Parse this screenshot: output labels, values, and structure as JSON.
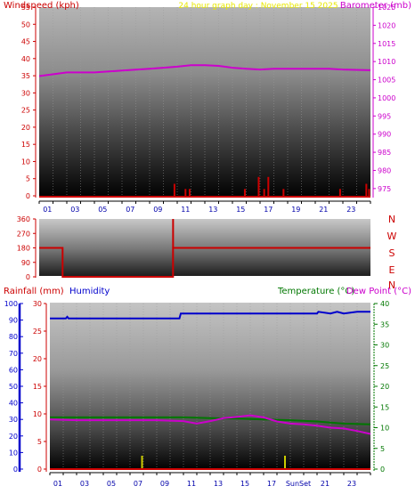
{
  "header": {
    "left": "Windspeed (kph)",
    "center": "24 hour graph day : November 15 2025",
    "right": "Barometer (mb)"
  },
  "colors": {
    "wind": "#cc0000",
    "baro": "#cc00cc",
    "center_title": "#e8e800",
    "humidity": "#0000cc",
    "rain": "#cc0000",
    "temperature": "#007700",
    "dewpoint": "#cc00cc",
    "sun": "#cccc00"
  },
  "chart_data": [
    {
      "type": "line",
      "name": "wind-barometer",
      "x_ticks": [
        "01",
        "03",
        "05",
        "07",
        "09",
        "11",
        "13",
        "15",
        "17",
        "19",
        "21",
        "23"
      ],
      "y_left": {
        "label": "Windspeed (kph)",
        "ticks": [
          0,
          5,
          10,
          15,
          20,
          25,
          30,
          35,
          40,
          45,
          50,
          55
        ],
        "lim": [
          0,
          55
        ]
      },
      "y_right": {
        "label": "Barometer (mb)",
        "ticks": [
          975,
          980,
          985,
          990,
          995,
          1000,
          1005,
          1010,
          1015,
          1020,
          1025
        ],
        "lim": [
          973,
          1025
        ]
      },
      "barometer": {
        "x": [
          0,
          2,
          4,
          6,
          8,
          9,
          10,
          11,
          12,
          13,
          14,
          15,
          16,
          17,
          18,
          19,
          20,
          21,
          22,
          23,
          24
        ],
        "y": [
          1006,
          1007,
          1007,
          1007.5,
          1008,
          1008.3,
          1008.6,
          1009,
          1009,
          1008.8,
          1008.3,
          1008,
          1007.8,
          1008,
          1008,
          1008,
          1008,
          1008,
          1007.8,
          1007.7,
          1007.6
        ]
      },
      "wind_bars": {
        "x": [
          9.8,
          10.6,
          10.9,
          14.9,
          15.9,
          16.3,
          16.6,
          17.7,
          21.8,
          23.7,
          23.9
        ],
        "y": [
          3.5,
          2,
          2,
          2,
          5.5,
          2,
          5.5,
          2,
          2,
          3.5,
          2
        ]
      }
    },
    {
      "type": "line",
      "name": "wind-direction",
      "y_right_labels": [
        "N",
        "W",
        "S",
        "E",
        "N"
      ],
      "y_left": {
        "ticks": [
          0,
          90,
          180,
          270,
          360
        ],
        "lim": [
          0,
          360
        ]
      },
      "series": [
        {
          "x": [
            0,
            1.7,
            1.7,
            9.7,
            9.7,
            24
          ],
          "y": [
            180,
            180,
            0,
            0,
            180,
            180
          ]
        }
      ],
      "spike": {
        "x": 9.7,
        "y": 360
      }
    },
    {
      "type": "line",
      "name": "rain-humidity-temp-dew",
      "labels": {
        "left1": "Rainfall (mm)",
        "left2": "Humidity",
        "right1": "Temperature (°C)",
        "right2": "Dew Point (°C)"
      },
      "x_ticks": [
        "01",
        "03",
        "05",
        "07",
        "09",
        "11",
        "13",
        "15",
        "17",
        "SunSet",
        "21",
        "23"
      ],
      "humidity_axis": {
        "ticks": [
          0,
          10,
          20,
          30,
          40,
          50,
          60,
          70,
          80,
          90,
          100
        ],
        "lim": [
          0,
          100
        ]
      },
      "rain_axis": {
        "ticks": [
          0,
          5,
          10,
          15,
          20,
          25,
          30
        ],
        "lim": [
          0,
          30
        ]
      },
      "temp_axis": {
        "ticks": [
          0,
          5,
          10,
          15,
          20,
          25,
          30,
          35,
          40
        ],
        "lim": [
          0,
          40
        ]
      },
      "humidity": {
        "x": [
          0,
          1.2,
          1.3,
          1.4,
          9.7,
          9.8,
          20,
          20.1,
          21,
          21.5,
          22,
          23,
          24
        ],
        "y": [
          91,
          91,
          92,
          91,
          91,
          94,
          94,
          95,
          94,
          95,
          94,
          95,
          95
        ]
      },
      "temperature": {
        "x": [
          0,
          10,
          12,
          14,
          16,
          18,
          20,
          22,
          24
        ],
        "y": [
          12.5,
          12.5,
          12.3,
          12.2,
          12,
          11.8,
          11.5,
          11,
          10.8
        ]
      },
      "dewpoint": {
        "x": [
          0,
          2,
          4,
          6,
          8,
          10,
          11,
          12,
          13,
          14,
          15,
          16,
          17,
          18,
          19,
          20,
          21,
          22,
          23,
          24
        ],
        "y": [
          12,
          11.8,
          11.8,
          11.8,
          11.8,
          11.6,
          11,
          11.6,
          12.3,
          12.6,
          13,
          12.5,
          11.5,
          11,
          10.8,
          10.5,
          10,
          9.8,
          9.2,
          8.5
        ]
      },
      "sun_markers": [
        6.9,
        17.6
      ]
    }
  ]
}
